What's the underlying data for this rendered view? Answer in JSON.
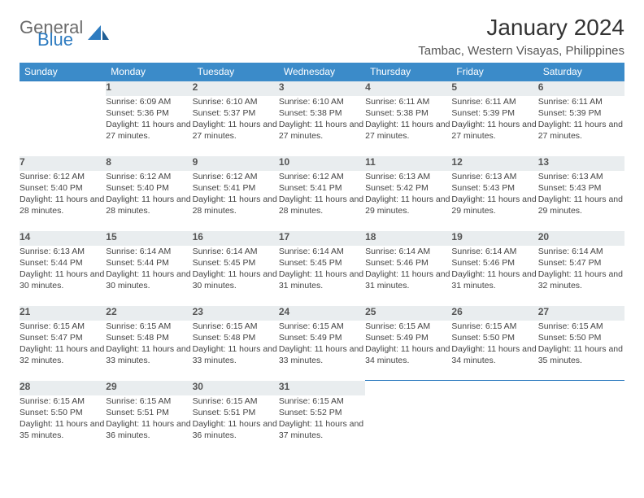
{
  "brand": {
    "word1": "General",
    "word2": "Blue"
  },
  "title": "January 2024",
  "location": "Tambac, Western Visayas, Philippines",
  "colors": {
    "header_bg": "#3b8bc9",
    "header_text": "#ffffff",
    "daynum_bg": "#e9edef",
    "row_border": "#2d7bc0",
    "brand_gray": "#6b6b6b",
    "brand_blue": "#2d7bc0"
  },
  "weekdays": [
    "Sunday",
    "Monday",
    "Tuesday",
    "Wednesday",
    "Thursday",
    "Friday",
    "Saturday"
  ],
  "weeks": [
    {
      "nums": [
        "",
        "1",
        "2",
        "3",
        "4",
        "5",
        "6"
      ],
      "cells": [
        {
          "empty": true
        },
        {
          "sunrise": "6:09 AM",
          "sunset": "5:36 PM",
          "daylight": "11 hours and 27 minutes."
        },
        {
          "sunrise": "6:10 AM",
          "sunset": "5:37 PM",
          "daylight": "11 hours and 27 minutes."
        },
        {
          "sunrise": "6:10 AM",
          "sunset": "5:38 PM",
          "daylight": "11 hours and 27 minutes."
        },
        {
          "sunrise": "6:11 AM",
          "sunset": "5:38 PM",
          "daylight": "11 hours and 27 minutes."
        },
        {
          "sunrise": "6:11 AM",
          "sunset": "5:39 PM",
          "daylight": "11 hours and 27 minutes."
        },
        {
          "sunrise": "6:11 AM",
          "sunset": "5:39 PM",
          "daylight": "11 hours and 27 minutes."
        }
      ]
    },
    {
      "nums": [
        "7",
        "8",
        "9",
        "10",
        "11",
        "12",
        "13"
      ],
      "cells": [
        {
          "sunrise": "6:12 AM",
          "sunset": "5:40 PM",
          "daylight": "11 hours and 28 minutes."
        },
        {
          "sunrise": "6:12 AM",
          "sunset": "5:40 PM",
          "daylight": "11 hours and 28 minutes."
        },
        {
          "sunrise": "6:12 AM",
          "sunset": "5:41 PM",
          "daylight": "11 hours and 28 minutes."
        },
        {
          "sunrise": "6:12 AM",
          "sunset": "5:41 PM",
          "daylight": "11 hours and 28 minutes."
        },
        {
          "sunrise": "6:13 AM",
          "sunset": "5:42 PM",
          "daylight": "11 hours and 29 minutes."
        },
        {
          "sunrise": "6:13 AM",
          "sunset": "5:43 PM",
          "daylight": "11 hours and 29 minutes."
        },
        {
          "sunrise": "6:13 AM",
          "sunset": "5:43 PM",
          "daylight": "11 hours and 29 minutes."
        }
      ]
    },
    {
      "nums": [
        "14",
        "15",
        "16",
        "17",
        "18",
        "19",
        "20"
      ],
      "cells": [
        {
          "sunrise": "6:13 AM",
          "sunset": "5:44 PM",
          "daylight": "11 hours and 30 minutes."
        },
        {
          "sunrise": "6:14 AM",
          "sunset": "5:44 PM",
          "daylight": "11 hours and 30 minutes."
        },
        {
          "sunrise": "6:14 AM",
          "sunset": "5:45 PM",
          "daylight": "11 hours and 30 minutes."
        },
        {
          "sunrise": "6:14 AM",
          "sunset": "5:45 PM",
          "daylight": "11 hours and 31 minutes."
        },
        {
          "sunrise": "6:14 AM",
          "sunset": "5:46 PM",
          "daylight": "11 hours and 31 minutes."
        },
        {
          "sunrise": "6:14 AM",
          "sunset": "5:46 PM",
          "daylight": "11 hours and 31 minutes."
        },
        {
          "sunrise": "6:14 AM",
          "sunset": "5:47 PM",
          "daylight": "11 hours and 32 minutes."
        }
      ]
    },
    {
      "nums": [
        "21",
        "22",
        "23",
        "24",
        "25",
        "26",
        "27"
      ],
      "cells": [
        {
          "sunrise": "6:15 AM",
          "sunset": "5:47 PM",
          "daylight": "11 hours and 32 minutes."
        },
        {
          "sunrise": "6:15 AM",
          "sunset": "5:48 PM",
          "daylight": "11 hours and 33 minutes."
        },
        {
          "sunrise": "6:15 AM",
          "sunset": "5:48 PM",
          "daylight": "11 hours and 33 minutes."
        },
        {
          "sunrise": "6:15 AM",
          "sunset": "5:49 PM",
          "daylight": "11 hours and 33 minutes."
        },
        {
          "sunrise": "6:15 AM",
          "sunset": "5:49 PM",
          "daylight": "11 hours and 34 minutes."
        },
        {
          "sunrise": "6:15 AM",
          "sunset": "5:50 PM",
          "daylight": "11 hours and 34 minutes."
        },
        {
          "sunrise": "6:15 AM",
          "sunset": "5:50 PM",
          "daylight": "11 hours and 35 minutes."
        }
      ]
    },
    {
      "nums": [
        "28",
        "29",
        "30",
        "31",
        "",
        "",
        ""
      ],
      "cells": [
        {
          "sunrise": "6:15 AM",
          "sunset": "5:50 PM",
          "daylight": "11 hours and 35 minutes."
        },
        {
          "sunrise": "6:15 AM",
          "sunset": "5:51 PM",
          "daylight": "11 hours and 36 minutes."
        },
        {
          "sunrise": "6:15 AM",
          "sunset": "5:51 PM",
          "daylight": "11 hours and 36 minutes."
        },
        {
          "sunrise": "6:15 AM",
          "sunset": "5:52 PM",
          "daylight": "11 hours and 37 minutes."
        },
        {
          "empty": true
        },
        {
          "empty": true
        },
        {
          "empty": true
        }
      ]
    }
  ],
  "labels": {
    "sunrise": "Sunrise: ",
    "sunset": "Sunset: ",
    "daylight": "Daylight: "
  }
}
